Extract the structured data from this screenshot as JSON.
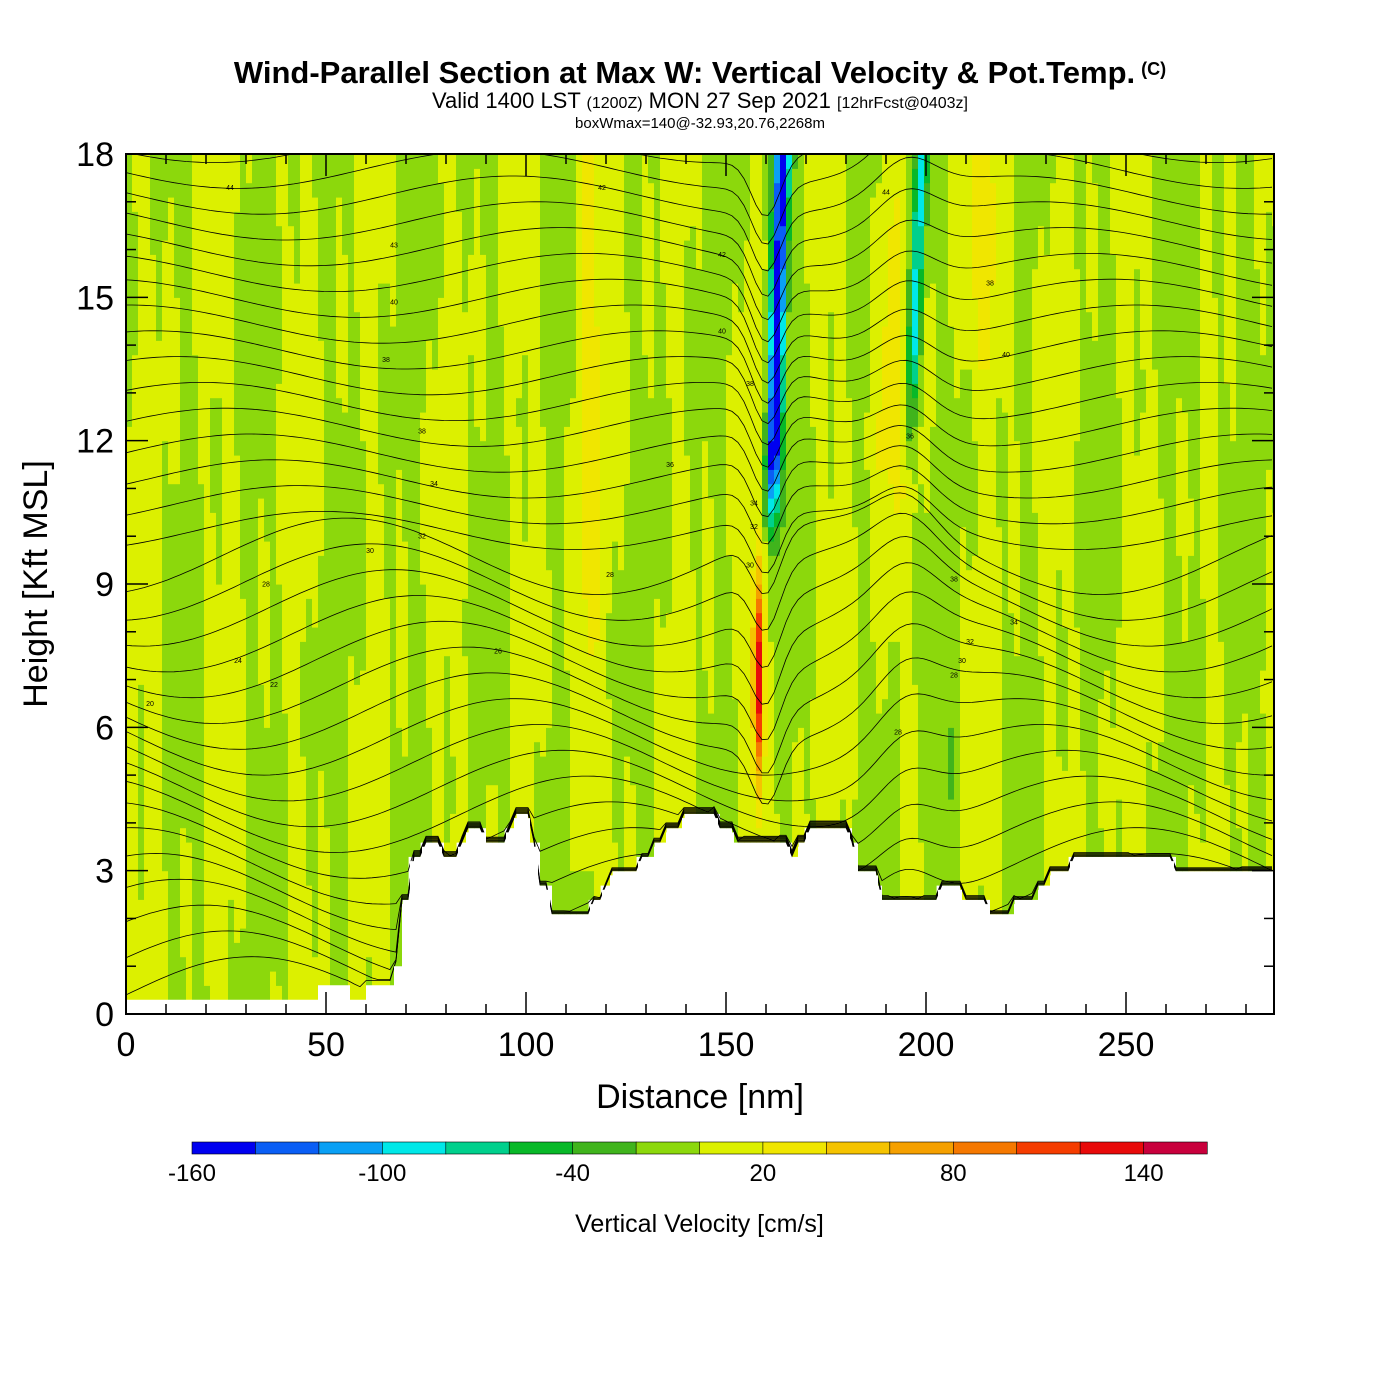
{
  "header": {
    "title": "Wind-Parallel Section at Max W: Vertical Velocity & Pot.Temp.",
    "copyright": "(C)",
    "valid_prefix": "Valid 1400 LST",
    "valid_utc": "(1200Z)",
    "valid_date": "MON 27 Sep 2021",
    "forecast": "[12hrFcst@0403z]",
    "subtitle": "boxWmax=140@-32.93,20.76,2268m"
  },
  "chart_data": {
    "type": "heatmap",
    "title": "Wind-Parallel Section at Max W: Vertical Velocity & Pot.Temp.",
    "xlabel": "Distance [nm]",
    "ylabel": "Height [Kft MSL]",
    "xlim": [
      0,
      287
    ],
    "ylim": [
      0,
      18
    ],
    "xticks": [
      "0",
      "50",
      "100",
      "150",
      "200",
      "250"
    ],
    "yticks": [
      "0",
      "3",
      "6",
      "9",
      "12",
      "15",
      "18"
    ],
    "colorbar": {
      "title": "Vertical Velocity [cm/s]",
      "tick_labels": [
        "-160",
        "-100",
        "-40",
        "20",
        "80",
        "140"
      ],
      "tick_values": [
        -160,
        -100,
        -40,
        20,
        80,
        140
      ],
      "min": -160,
      "max": 160,
      "colors": [
        "#0000f0",
        "#0a5ef5",
        "#0aa0f5",
        "#00e8e8",
        "#00d08c",
        "#08b828",
        "#40b41c",
        "#8cd80c",
        "#dcf000",
        "#f0e600",
        "#f5c300",
        "#f5a000",
        "#f57800",
        "#f53c00",
        "#e80a0a",
        "#c8003c"
      ]
    },
    "terrain_kft": [
      [
        0,
        0.3
      ],
      [
        48,
        0.3
      ],
      [
        48,
        0.6
      ],
      [
        56,
        0.6
      ],
      [
        56,
        0.3
      ],
      [
        60,
        0.3
      ],
      [
        60,
        0.6
      ],
      [
        67,
        0.6
      ],
      [
        67,
        1.0
      ],
      [
        69,
        1.0
      ],
      [
        69,
        2.3
      ],
      [
        71,
        2.3
      ],
      [
        71,
        3.2
      ],
      [
        74,
        3.2
      ],
      [
        74,
        3.5
      ],
      [
        79,
        3.5
      ],
      [
        79,
        3.2
      ],
      [
        83,
        3.2
      ],
      [
        83,
        3.5
      ],
      [
        85,
        3.5
      ],
      [
        85,
        3.8
      ],
      [
        90,
        3.8
      ],
      [
        90,
        3.5
      ],
      [
        95,
        3.5
      ],
      [
        95,
        3.8
      ],
      [
        97,
        3.8
      ],
      [
        97,
        4.1
      ],
      [
        101,
        4.1
      ],
      [
        101,
        3.5
      ],
      [
        103,
        3.5
      ],
      [
        103,
        2.6
      ],
      [
        106,
        2.6
      ],
      [
        106,
        2.0
      ],
      [
        116,
        2.0
      ],
      [
        116,
        2.3
      ],
      [
        119,
        2.3
      ],
      [
        119,
        2.6
      ],
      [
        121,
        2.6
      ],
      [
        121,
        2.9
      ],
      [
        128,
        2.9
      ],
      [
        128,
        3.2
      ],
      [
        132,
        3.2
      ],
      [
        132,
        3.5
      ],
      [
        135,
        3.5
      ],
      [
        135,
        3.8
      ],
      [
        139,
        3.8
      ],
      [
        139,
        4.1
      ],
      [
        148,
        4.1
      ],
      [
        148,
        3.8
      ],
      [
        152,
        3.8
      ],
      [
        152,
        3.5
      ],
      [
        166,
        3.5
      ],
      [
        166,
        3.2
      ],
      [
        168,
        3.2
      ],
      [
        168,
        3.5
      ],
      [
        170,
        3.5
      ],
      [
        170,
        3.8
      ],
      [
        181,
        3.8
      ],
      [
        181,
        3.5
      ],
      [
        183,
        3.5
      ],
      [
        183,
        2.9
      ],
      [
        188,
        2.9
      ],
      [
        188,
        2.6
      ],
      [
        189,
        2.6
      ],
      [
        189,
        2.3
      ],
      [
        203,
        2.3
      ],
      [
        203,
        2.6
      ],
      [
        209,
        2.6
      ],
      [
        209,
        2.3
      ],
      [
        216,
        2.3
      ],
      [
        216,
        2.0
      ],
      [
        222,
        2.0
      ],
      [
        222,
        2.3
      ],
      [
        228,
        2.3
      ],
      [
        228,
        2.6
      ],
      [
        231,
        2.6
      ],
      [
        231,
        2.9
      ],
      [
        236,
        2.9
      ],
      [
        236,
        3.2
      ],
      [
        240,
        3.2
      ],
      [
        240,
        3.2
      ],
      [
        262,
        3.2
      ],
      [
        262,
        2.9
      ],
      [
        287,
        2.9
      ]
    ],
    "strong_updraft": {
      "x_nm": 158,
      "peak_cm_s": 140,
      "height_range_kft": [
        4,
        10
      ]
    },
    "strong_downdraft": {
      "x_nm": 162,
      "peak_cm_s": -160,
      "height_range_kft": [
        10,
        18
      ]
    },
    "theta_contour_labels": [
      {
        "text": "44",
        "x_nm": 26,
        "y_kft": 17.3
      },
      {
        "text": "42",
        "x_nm": 119,
        "y_kft": 17.3
      },
      {
        "text": "44",
        "x_nm": 190,
        "y_kft": 17.2
      },
      {
        "text": "43",
        "x_nm": 67,
        "y_kft": 16.1
      },
      {
        "text": "42",
        "x_nm": 149,
        "y_kft": 15.9
      },
      {
        "text": "40",
        "x_nm": 67,
        "y_kft": 14.9
      },
      {
        "text": "40",
        "x_nm": 149,
        "y_kft": 14.3
      },
      {
        "text": "38",
        "x_nm": 216,
        "y_kft": 15.3
      },
      {
        "text": "40",
        "x_nm": 220,
        "y_kft": 13.8
      },
      {
        "text": "38",
        "x_nm": 65,
        "y_kft": 13.7
      },
      {
        "text": "38",
        "x_nm": 156,
        "y_kft": 13.2
      },
      {
        "text": "38",
        "x_nm": 74,
        "y_kft": 12.2
      },
      {
        "text": "36",
        "x_nm": 196,
        "y_kft": 12.1
      },
      {
        "text": "36",
        "x_nm": 136,
        "y_kft": 11.5
      },
      {
        "text": "34",
        "x_nm": 77,
        "y_kft": 11.1
      },
      {
        "text": "34",
        "x_nm": 157,
        "y_kft": 10.7
      },
      {
        "text": "32",
        "x_nm": 74,
        "y_kft": 10.0
      },
      {
        "text": "32",
        "x_nm": 157,
        "y_kft": 10.2
      },
      {
        "text": "30",
        "x_nm": 61,
        "y_kft": 9.7
      },
      {
        "text": "30",
        "x_nm": 156,
        "y_kft": 9.4
      },
      {
        "text": "28",
        "x_nm": 121,
        "y_kft": 9.2
      },
      {
        "text": "38",
        "x_nm": 207,
        "y_kft": 9.1
      },
      {
        "text": "28",
        "x_nm": 35,
        "y_kft": 9.0
      },
      {
        "text": "34",
        "x_nm": 222,
        "y_kft": 8.2
      },
      {
        "text": "32",
        "x_nm": 211,
        "y_kft": 7.8
      },
      {
        "text": "30",
        "x_nm": 209,
        "y_kft": 7.4
      },
      {
        "text": "26",
        "x_nm": 93,
        "y_kft": 7.6
      },
      {
        "text": "24",
        "x_nm": 28,
        "y_kft": 7.4
      },
      {
        "text": "28",
        "x_nm": 207,
        "y_kft": 7.1
      },
      {
        "text": "22",
        "x_nm": 37,
        "y_kft": 6.9
      },
      {
        "text": "20",
        "x_nm": 6,
        "y_kft": 6.5
      },
      {
        "text": "28",
        "x_nm": 193,
        "y_kft": 5.9
      }
    ]
  }
}
